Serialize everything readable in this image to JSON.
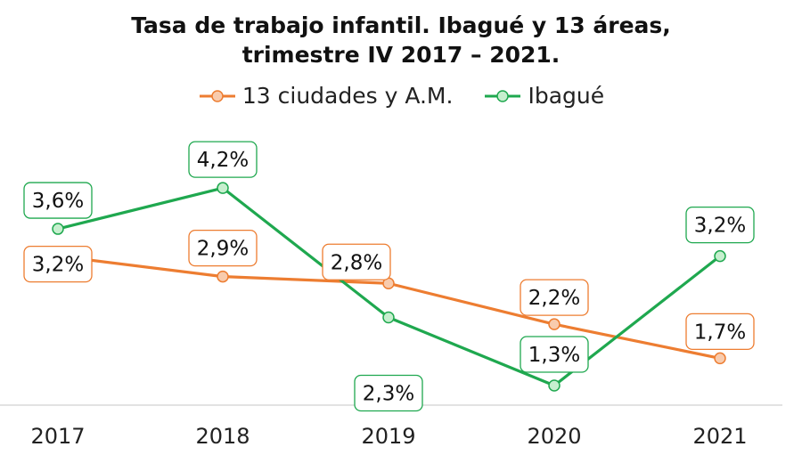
{
  "chart_data": {
    "type": "line",
    "title": "Tasa de trabajo infantil. Ibagué y 13 áreas,",
    "subtitle": "trimestre IV 2017 – 2021.",
    "categories": [
      "2017",
      "2018",
      "2019",
      "2020",
      "2021"
    ],
    "series": [
      {
        "name": "13 ciudades y A.M.",
        "values": [
          3.2,
          2.9,
          2.8,
          2.2,
          1.7
        ],
        "labels": [
          "3,2%",
          "2,9%",
          "2,8%",
          "2,2%",
          "1,7%"
        ],
        "color": "#ED7D31",
        "marker_fill": "#F8CBAD"
      },
      {
        "name": "Ibagué",
        "values": [
          3.6,
          4.2,
          2.3,
          1.3,
          3.2
        ],
        "labels": [
          "3,6%",
          "4,2%",
          "2,3%",
          "1,3%",
          "3,2%"
        ],
        "color": "#1FA84F",
        "marker_fill": "#C6EFCE"
      }
    ],
    "ylim": [
      1.0,
      4.5
    ],
    "grid": false,
    "legend": "top-center"
  }
}
